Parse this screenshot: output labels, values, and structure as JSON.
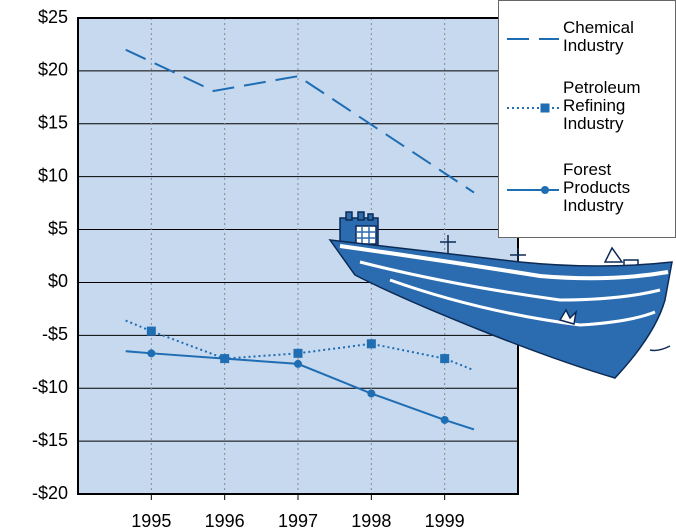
{
  "chart_data": {
    "type": "line",
    "xlim": [
      1994,
      2000
    ],
    "xticks": [
      1995,
      1996,
      1997,
      1998,
      1999
    ],
    "ylim": [
      -20,
      25
    ],
    "yticks": [
      {
        "value": -20,
        "label": "-$20"
      },
      {
        "value": -15,
        "label": "-$15"
      },
      {
        "value": -10,
        "label": "-$10"
      },
      {
        "value": -5,
        "label": "-$5"
      },
      {
        "value": 0,
        "label": "$0"
      },
      {
        "value": 5,
        "label": "$5"
      },
      {
        "value": 10,
        "label": "$10"
      },
      {
        "value": 15,
        "label": "$15"
      },
      {
        "value": 20,
        "label": "$20"
      },
      {
        "value": 25,
        "label": "$25"
      }
    ],
    "grid": true,
    "legend": "upper right",
    "background": "#c6d9ef",
    "series": [
      {
        "name": "Chemical Industry",
        "color": "#1f6db3",
        "style": "dashed",
        "marker": "none",
        "x": [
          1994.65,
          1995.85,
          1997,
          1999.4
        ],
        "values": [
          22,
          18.1,
          19.5,
          8.5
        ]
      },
      {
        "name": "Petroleum Refining Industry",
        "color": "#1f6db3",
        "style": "dotted",
        "marker": "square",
        "x": [
          1994.65,
          1995,
          1996,
          1997,
          1998,
          1999,
          1999.4
        ],
        "values": [
          -3.6,
          -4.6,
          -7.2,
          -6.7,
          -5.8,
          -7.2,
          -8.3
        ]
      },
      {
        "name": "Forest Products Industry",
        "color": "#1f6db3",
        "style": "solid",
        "marker": "circle",
        "x": [
          1994.65,
          1995,
          1996,
          1997,
          1998,
          1999,
          1999.4
        ],
        "values": [
          -6.5,
          -6.7,
          -7.2,
          -7.7,
          -10.5,
          -13,
          -13.9
        ]
      }
    ]
  }
}
